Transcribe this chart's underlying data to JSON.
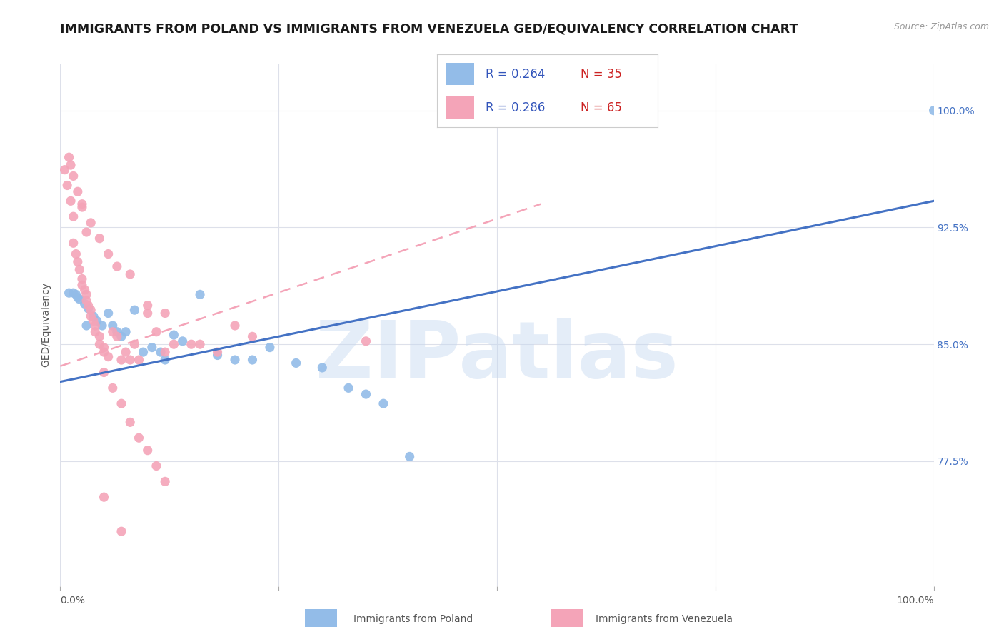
{
  "title": "IMMIGRANTS FROM POLAND VS IMMIGRANTS FROM VENEZUELA GED/EQUIVALENCY CORRELATION CHART",
  "source": "Source: ZipAtlas.com",
  "ylabel": "GED/Equivalency",
  "xlim": [
    0.0,
    1.0
  ],
  "ylim": [
    0.695,
    1.03
  ],
  "poland_color": "#93bce8",
  "venezuela_color": "#f4a4b8",
  "legend_blue": "#3355bb",
  "legend_red": "#cc2222",
  "ytick_vals": [
    0.775,
    0.85,
    0.925,
    1.0
  ],
  "ytick_labels": [
    "77.5%",
    "85.0%",
    "92.5%",
    "100.0%"
  ],
  "watermark": "ZIPatlas",
  "poland_scatter_x": [
    0.015,
    0.018,
    0.022,
    0.028,
    0.032,
    0.038,
    0.042,
    0.048,
    0.055,
    0.06,
    0.065,
    0.07,
    0.075,
    0.085,
    0.095,
    0.105,
    0.115,
    0.12,
    0.13,
    0.14,
    0.16,
    0.18,
    0.2,
    0.22,
    0.24,
    0.27,
    0.3,
    0.33,
    0.37,
    0.4,
    0.01,
    0.02,
    0.03,
    0.35,
    1.0
  ],
  "poland_scatter_y": [
    0.883,
    0.882,
    0.879,
    0.876,
    0.873,
    0.868,
    0.865,
    0.862,
    0.87,
    0.862,
    0.858,
    0.855,
    0.858,
    0.872,
    0.845,
    0.848,
    0.845,
    0.84,
    0.856,
    0.852,
    0.882,
    0.843,
    0.84,
    0.84,
    0.848,
    0.838,
    0.835,
    0.822,
    0.812,
    0.778,
    0.883,
    0.88,
    0.862,
    0.818,
    1.0
  ],
  "venezuela_scatter_x": [
    0.005,
    0.008,
    0.012,
    0.015,
    0.015,
    0.018,
    0.02,
    0.022,
    0.025,
    0.025,
    0.028,
    0.03,
    0.03,
    0.032,
    0.035,
    0.035,
    0.038,
    0.04,
    0.04,
    0.045,
    0.045,
    0.05,
    0.05,
    0.055,
    0.06,
    0.065,
    0.07,
    0.075,
    0.08,
    0.085,
    0.09,
    0.1,
    0.11,
    0.12,
    0.13,
    0.15,
    0.16,
    0.18,
    0.2,
    0.22,
    0.025,
    0.035,
    0.045,
    0.055,
    0.065,
    0.08,
    0.1,
    0.12,
    0.05,
    0.06,
    0.07,
    0.08,
    0.09,
    0.1,
    0.11,
    0.12,
    0.05,
    0.07,
    0.01,
    0.012,
    0.015,
    0.02,
    0.025,
    0.03,
    0.35
  ],
  "venezuela_scatter_y": [
    0.962,
    0.952,
    0.942,
    0.932,
    0.915,
    0.908,
    0.903,
    0.898,
    0.892,
    0.888,
    0.885,
    0.882,
    0.878,
    0.875,
    0.872,
    0.868,
    0.865,
    0.862,
    0.858,
    0.855,
    0.85,
    0.848,
    0.845,
    0.842,
    0.858,
    0.855,
    0.84,
    0.845,
    0.84,
    0.85,
    0.84,
    0.87,
    0.858,
    0.845,
    0.85,
    0.85,
    0.85,
    0.845,
    0.862,
    0.855,
    0.94,
    0.928,
    0.918,
    0.908,
    0.9,
    0.895,
    0.875,
    0.87,
    0.832,
    0.822,
    0.812,
    0.8,
    0.79,
    0.782,
    0.772,
    0.762,
    0.752,
    0.73,
    0.97,
    0.965,
    0.958,
    0.948,
    0.938,
    0.922,
    0.852
  ],
  "poland_line_x": [
    0.0,
    1.0
  ],
  "poland_line_y": [
    0.826,
    0.942
  ],
  "venezuela_line_x": [
    0.0,
    0.55
  ],
  "venezuela_line_y": [
    0.836,
    0.94
  ],
  "background_color": "#ffffff",
  "grid_color": "#dde0ea",
  "title_fontsize": 12.5,
  "tick_fontsize": 10,
  "ylabel_fontsize": 10
}
